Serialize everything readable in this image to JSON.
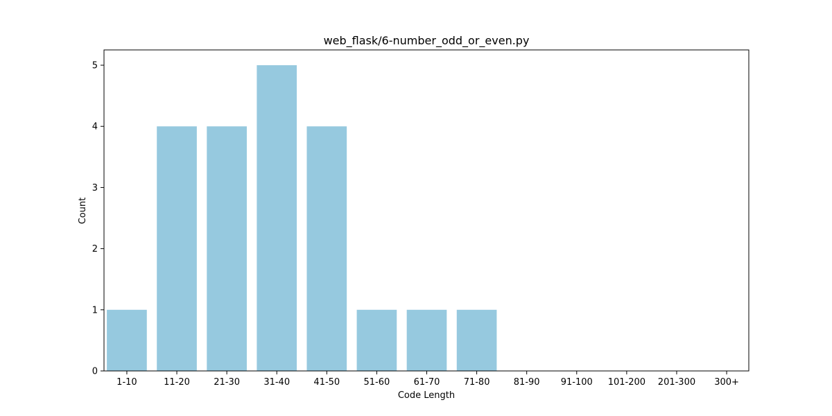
{
  "chart_data": {
    "type": "bar",
    "title": "web_flask/6-number_odd_or_even.py",
    "xlabel": "Code Length",
    "ylabel": "Count",
    "categories": [
      "1-10",
      "11-20",
      "21-30",
      "31-40",
      "41-50",
      "51-60",
      "61-70",
      "71-80",
      "81-90",
      "91-100",
      "101-200",
      "201-300",
      "300+"
    ],
    "values": [
      1,
      4,
      4,
      5,
      4,
      1,
      1,
      1,
      0,
      0,
      0,
      0,
      0
    ],
    "yticks": [
      "0",
      "1",
      "2",
      "3",
      "4",
      "5"
    ],
    "ylim": [
      0,
      5.25
    ],
    "bar_color": "#96c9df",
    "grid": false,
    "legend": "none"
  }
}
